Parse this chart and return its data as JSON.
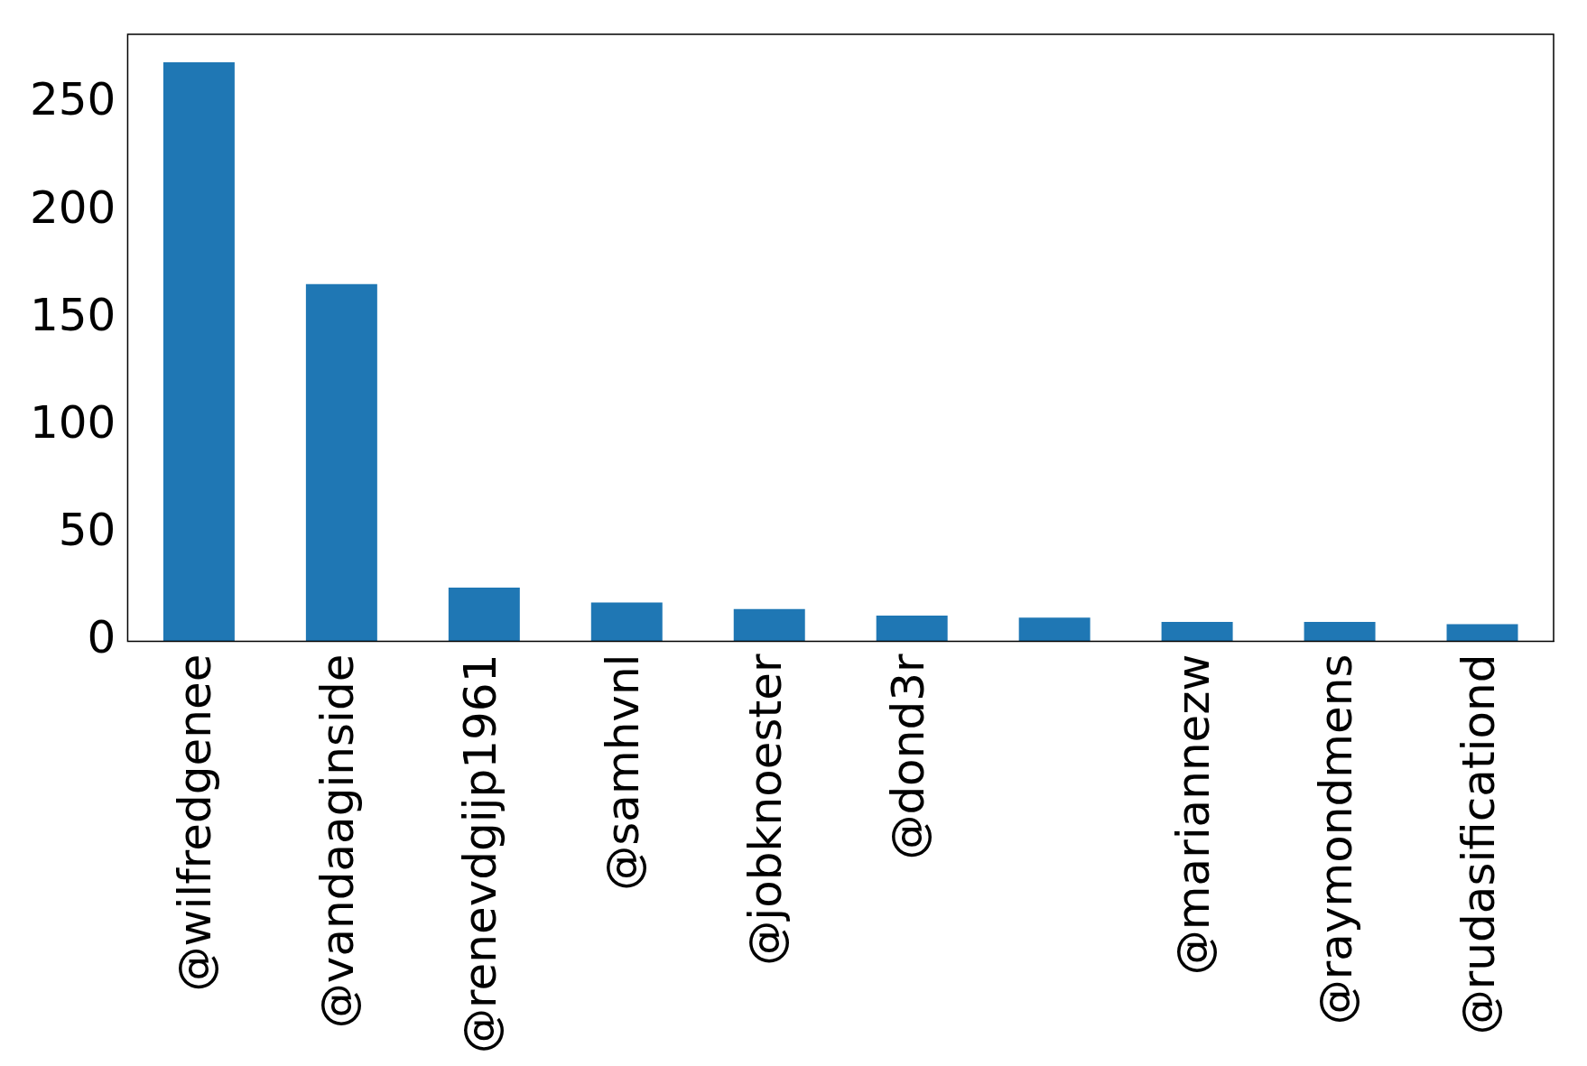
{
  "chart_data": {
    "type": "bar",
    "categories": [
      "@wilfredgenee",
      "@vandaaginside",
      "@renevdgijp1961",
      "@samhvnl",
      "@jobknoester",
      "@dond3r",
      null,
      "@mariannezw",
      "@raymondmens",
      "@rudasificationd"
    ],
    "values": [
      269,
      166,
      25,
      18,
      15,
      12,
      11,
      9,
      9,
      8
    ],
    "color": "#1f77b4",
    "ylim": [
      0,
      282
    ],
    "yticks": [
      0,
      50,
      100,
      150,
      200,
      250
    ],
    "grid": false,
    "legend": false
  }
}
